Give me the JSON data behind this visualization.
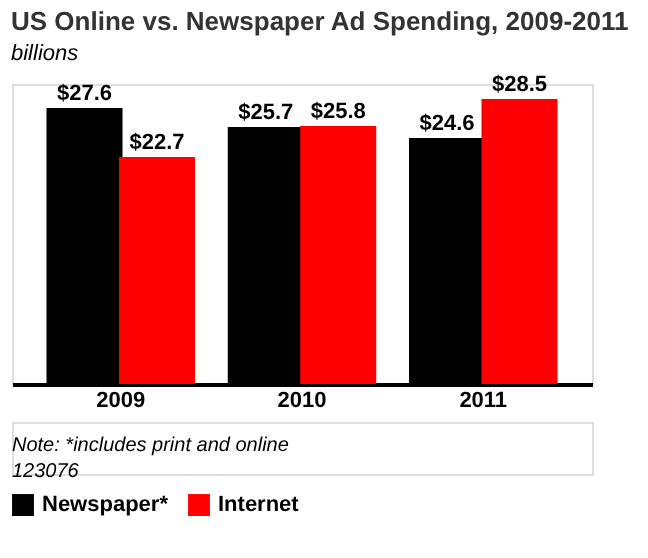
{
  "chart_data": {
    "type": "bar",
    "title": "US Online vs. Newspaper Ad Spending, 2009-2011",
    "subtitle": "billions",
    "categories": [
      "2009",
      "2010",
      "2011"
    ],
    "series": [
      {
        "name": "Newspaper*",
        "color": "#000000",
        "values": [
          27.6,
          25.7,
          24.6
        ],
        "value_labels": [
          "$27.6",
          "$25.7",
          "$24.6"
        ]
      },
      {
        "name": "Internet",
        "color": "#ff0000",
        "values": [
          22.7,
          25.8,
          28.5
        ],
        "value_labels": [
          "$22.7",
          "$25.8",
          "$28.5"
        ]
      }
    ],
    "data_labels": true,
    "legend": "bottom left",
    "grid": false,
    "annotations": [
      "Note: *includes print and online",
      "123076"
    ]
  }
}
